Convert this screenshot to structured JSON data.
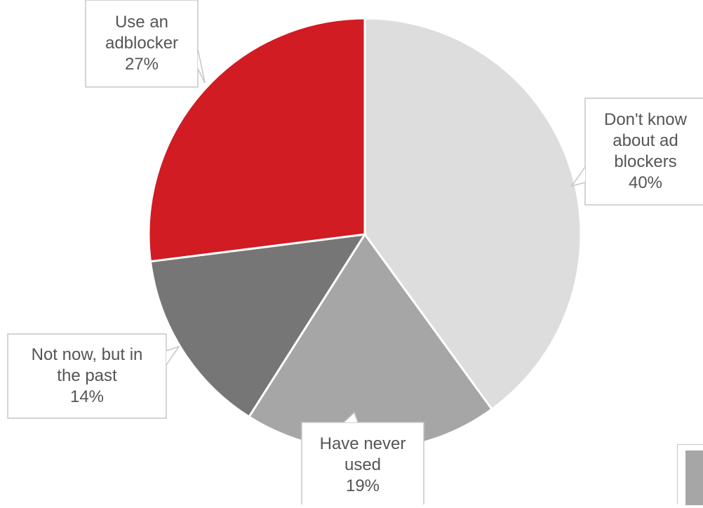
{
  "chart_data": {
    "type": "pie",
    "start_angle_deg": 0,
    "direction": "clockwise",
    "slices": [
      {
        "label_lines": [
          "Don't know",
          "about ad",
          "blockers"
        ],
        "value": 40,
        "value_label": "40%",
        "color": "#dddddd"
      },
      {
        "label_lines": [
          "Have never",
          "used"
        ],
        "value": 19,
        "value_label": "19%",
        "color": "#a6a6a6"
      },
      {
        "label_lines": [
          "Not now, but in",
          "the past"
        ],
        "value": 14,
        "value_label": "14%",
        "color": "#767676"
      },
      {
        "label_lines": [
          "Use an",
          "adblocker"
        ],
        "value": 27,
        "value_label": "27%",
        "color": "#d01c22"
      }
    ]
  }
}
